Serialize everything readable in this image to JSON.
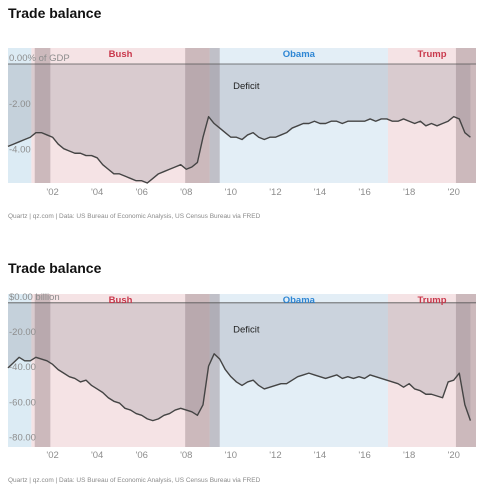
{
  "chart_data": [
    {
      "type": "line",
      "title": "Trade balance",
      "unit_label": "0.00% of GDP",
      "source": "Quartz | qz.com | Data: US Bureau of Economic Analysis, US Census Bureau via FRED",
      "xlim": [
        2000.0,
        2021.0
      ],
      "ylim": [
        -5.2,
        0.7
      ],
      "x_ticks": [
        {
          "value": 2002,
          "label": "'02"
        },
        {
          "value": 2004,
          "label": "'04"
        },
        {
          "value": 2006,
          "label": "'06"
        },
        {
          "value": 2008,
          "label": "'08"
        },
        {
          "value": 2010,
          "label": "'10"
        },
        {
          "value": 2012,
          "label": "'12"
        },
        {
          "value": 2014,
          "label": "'14"
        },
        {
          "value": 2016,
          "label": "'16"
        },
        {
          "value": 2018,
          "label": "'18"
        },
        {
          "value": 2020,
          "label": "'20"
        }
      ],
      "y_ticks": [
        {
          "value": 0,
          "label": "0.00% of GDP"
        },
        {
          "value": -2,
          "label": "-2.00"
        },
        {
          "value": -4,
          "label": "-4.00"
        }
      ],
      "eras": [
        {
          "name": "",
          "start": 2000.0,
          "end": 2001.05,
          "color": "#dcebf4"
        },
        {
          "name": "Bush",
          "start": 2001.05,
          "end": 2009.05,
          "color": "#f5e3e5",
          "label_color": "#c9384c"
        },
        {
          "name": "Obama",
          "start": 2009.05,
          "end": 2017.05,
          "color": "#e3eef6",
          "label_color": "#2e86d4"
        },
        {
          "name": "Trump",
          "start": 2017.05,
          "end": 2021.0,
          "color": "#f5e3e5",
          "label_color": "#c9384c"
        }
      ],
      "recessions": [
        {
          "start": 2001.2,
          "end": 2001.9
        },
        {
          "start": 2007.95,
          "end": 2009.5
        },
        {
          "start": 2020.1,
          "end": 2021.0
        }
      ],
      "annotations": [
        {
          "text": "Deficit",
          "x": 2010.1,
          "y": -1.1
        }
      ],
      "series": [
        {
          "x": [
            2000.0,
            2000.25,
            2000.5,
            2000.75,
            2001.0,
            2001.25,
            2001.5,
            2001.75,
            2002.0,
            2002.25,
            2002.5,
            2002.75,
            2003.0,
            2003.25,
            2003.5,
            2003.75,
            2004.0,
            2004.25,
            2004.5,
            2004.75,
            2005.0,
            2005.25,
            2005.5,
            2005.75,
            2006.0,
            2006.25,
            2006.5,
            2006.75,
            2007.0,
            2007.25,
            2007.5,
            2007.75,
            2008.0,
            2008.25,
            2008.5,
            2008.75,
            2009.0,
            2009.25,
            2009.5,
            2009.75,
            2010.0,
            2010.25,
            2010.5,
            2010.75,
            2011.0,
            2011.25,
            2011.5,
            2011.75,
            2012.0,
            2012.25,
            2012.5,
            2012.75,
            2013.0,
            2013.25,
            2013.5,
            2013.75,
            2014.0,
            2014.25,
            2014.5,
            2014.75,
            2015.0,
            2015.25,
            2015.5,
            2015.75,
            2016.0,
            2016.25,
            2016.5,
            2016.75,
            2017.0,
            2017.25,
            2017.5,
            2017.75,
            2018.0,
            2018.25,
            2018.5,
            2018.75,
            2019.0,
            2019.25,
            2019.5,
            2019.75,
            2020.0,
            2020.25,
            2020.5,
            2020.75
          ],
          "values": [
            -3.6,
            -3.5,
            -3.4,
            -3.3,
            -3.2,
            -3.0,
            -3.0,
            -3.1,
            -3.2,
            -3.5,
            -3.7,
            -3.8,
            -3.9,
            -3.9,
            -4.0,
            -4.0,
            -4.1,
            -4.4,
            -4.6,
            -4.8,
            -4.8,
            -4.9,
            -5.0,
            -5.1,
            -5.1,
            -5.2,
            -5.0,
            -4.8,
            -4.7,
            -4.6,
            -4.5,
            -4.4,
            -4.6,
            -4.5,
            -4.3,
            -3.2,
            -2.3,
            -2.6,
            -2.8,
            -3.0,
            -3.2,
            -3.2,
            -3.3,
            -3.1,
            -3.0,
            -3.2,
            -3.3,
            -3.2,
            -3.2,
            -3.1,
            -3.0,
            -2.8,
            -2.7,
            -2.6,
            -2.6,
            -2.5,
            -2.6,
            -2.6,
            -2.5,
            -2.5,
            -2.6,
            -2.5,
            -2.5,
            -2.5,
            -2.5,
            -2.4,
            -2.5,
            -2.4,
            -2.4,
            -2.5,
            -2.5,
            -2.4,
            -2.5,
            -2.6,
            -2.5,
            -2.7,
            -2.6,
            -2.7,
            -2.6,
            -2.5,
            -2.3,
            -2.4,
            -3.0,
            -3.2
          ]
        }
      ]
    },
    {
      "type": "line",
      "title": "Trade balance",
      "unit_label": "$0.00 billion",
      "source": "Quartz | qz.com | Data: US Bureau of Economic Analysis, US Census Bureau via FRED",
      "xlim": [
        2000.0,
        2021.0
      ],
      "ylim": [
        -82,
        5
      ],
      "x_ticks": [
        {
          "value": 2002,
          "label": "'02"
        },
        {
          "value": 2004,
          "label": "'04"
        },
        {
          "value": 2006,
          "label": "'06"
        },
        {
          "value": 2008,
          "label": "'08"
        },
        {
          "value": 2010,
          "label": "'10"
        },
        {
          "value": 2012,
          "label": "'12"
        },
        {
          "value": 2014,
          "label": "'14"
        },
        {
          "value": 2016,
          "label": "'16"
        },
        {
          "value": 2018,
          "label": "'18"
        },
        {
          "value": 2020,
          "label": "'20"
        }
      ],
      "y_ticks": [
        {
          "value": 0,
          "label": "$0.00 billion"
        },
        {
          "value": -20,
          "label": "-20.00"
        },
        {
          "value": -40,
          "label": "-40.00"
        },
        {
          "value": -60,
          "label": "-60.00"
        },
        {
          "value": -80,
          "label": "-80.00"
        }
      ],
      "eras": [
        {
          "name": "",
          "start": 2000.0,
          "end": 2001.05,
          "color": "#dcebf4"
        },
        {
          "name": "Bush",
          "start": 2001.05,
          "end": 2009.05,
          "color": "#f5e3e5",
          "label_color": "#c9384c"
        },
        {
          "name": "Obama",
          "start": 2009.05,
          "end": 2017.05,
          "color": "#e3eef6",
          "label_color": "#2e86d4"
        },
        {
          "name": "Trump",
          "start": 2017.05,
          "end": 2021.0,
          "color": "#f5e3e5",
          "label_color": "#c9384c"
        }
      ],
      "recessions": [
        {
          "start": 2001.2,
          "end": 2001.9
        },
        {
          "start": 2007.95,
          "end": 2009.5
        },
        {
          "start": 2020.1,
          "end": 2021.0
        }
      ],
      "annotations": [
        {
          "text": "Deficit",
          "x": 2010.1,
          "y": -17
        }
      ],
      "series": [
        {
          "x": [
            2000.0,
            2000.25,
            2000.5,
            2000.75,
            2001.0,
            2001.25,
            2001.5,
            2001.75,
            2002.0,
            2002.25,
            2002.5,
            2002.75,
            2003.0,
            2003.25,
            2003.5,
            2003.75,
            2004.0,
            2004.25,
            2004.5,
            2004.75,
            2005.0,
            2005.25,
            2005.5,
            2005.75,
            2006.0,
            2006.25,
            2006.5,
            2006.75,
            2007.0,
            2007.25,
            2007.5,
            2007.75,
            2008.0,
            2008.25,
            2008.5,
            2008.75,
            2009.0,
            2009.25,
            2009.5,
            2009.75,
            2010.0,
            2010.25,
            2010.5,
            2010.75,
            2011.0,
            2011.25,
            2011.5,
            2011.75,
            2012.0,
            2012.25,
            2012.5,
            2012.75,
            2013.0,
            2013.25,
            2013.5,
            2013.75,
            2014.0,
            2014.25,
            2014.5,
            2014.75,
            2015.0,
            2015.25,
            2015.5,
            2015.75,
            2016.0,
            2016.25,
            2016.5,
            2016.75,
            2017.0,
            2017.25,
            2017.5,
            2017.75,
            2018.0,
            2018.25,
            2018.5,
            2018.75,
            2019.0,
            2019.25,
            2019.5,
            2019.75,
            2020.0,
            2020.25,
            2020.5,
            2020.75
          ],
          "values": [
            -37,
            -34,
            -31,
            -33,
            -33,
            -31,
            -32,
            -33,
            -35,
            -38,
            -40,
            -42,
            -43,
            -45,
            -44,
            -47,
            -49,
            -51,
            -54,
            -56,
            -57,
            -60,
            -61,
            -63,
            -64,
            -66,
            -67,
            -66,
            -64,
            -63,
            -61,
            -60,
            -61,
            -62,
            -64,
            -58,
            -36,
            -29,
            -32,
            -38,
            -42,
            -45,
            -47,
            -45,
            -44,
            -47,
            -49,
            -48,
            -47,
            -46,
            -46,
            -44,
            -42,
            -41,
            -40,
            -41,
            -42,
            -43,
            -42,
            -41,
            -43,
            -42,
            -43,
            -42,
            -43,
            -41,
            -42,
            -43,
            -44,
            -45,
            -46,
            -48,
            -46,
            -49,
            -50,
            -52,
            -52,
            -53,
            -54,
            -45,
            -44,
            -40,
            -58,
            -67
          ]
        }
      ]
    }
  ]
}
